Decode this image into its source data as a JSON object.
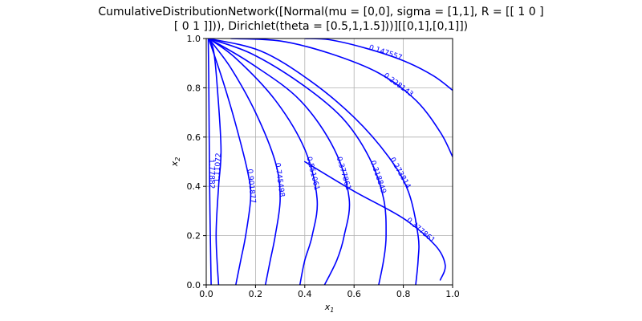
{
  "chart_data": {
    "type": "contour",
    "title_lines": [
      "CumulativeDistributionNetwork([Normal(mu = [0,0], sigma = [1,1], R = [[ 1 0 ]",
      "[ 0 1 ]])), Dirichlet(theta = [0.5,1,1.5]))][[0,1],[0,1]])"
    ],
    "xlabel": "x",
    "xlabel_sub": "1",
    "ylabel": "x",
    "ylabel_sub": "2",
    "xlim": [
      0,
      1
    ],
    "ylim": [
      0,
      1
    ],
    "xticks": [
      "0.0",
      "0.2",
      "0.4",
      "0.6",
      "0.8",
      "1.0"
    ],
    "yticks": [
      "0.0",
      "0.2",
      "0.4",
      "0.6",
      "0.8",
      "1.0"
    ],
    "grid": true,
    "line_color": "#0000ff",
    "contours": [
      {
        "level": "1.77882",
        "points": [
          [
            0.02,
            0.0
          ],
          [
            0.015,
            0.3
          ],
          [
            0.012,
            0.6
          ],
          [
            0.01,
            0.85
          ],
          [
            0.008,
            1.0
          ]
        ]
      },
      {
        "level": "1.11072",
        "points": [
          [
            0.05,
            0.0
          ],
          [
            0.04,
            0.2
          ],
          [
            0.05,
            0.4
          ],
          [
            0.06,
            0.55
          ],
          [
            0.045,
            0.8
          ],
          [
            0.03,
            0.95
          ],
          [
            0.01,
            1.0
          ]
        ]
      },
      {
        "level": "0.901877",
        "points": [
          [
            0.12,
            0.0
          ],
          [
            0.14,
            0.1
          ],
          [
            0.16,
            0.2
          ],
          [
            0.18,
            0.35
          ],
          [
            0.17,
            0.45
          ],
          [
            0.12,
            0.65
          ],
          [
            0.07,
            0.82
          ],
          [
            0.01,
            1.0
          ]
        ]
      },
      {
        "level": "0.745498",
        "points": [
          [
            0.24,
            0.0
          ],
          [
            0.26,
            0.1
          ],
          [
            0.28,
            0.2
          ],
          [
            0.3,
            0.35
          ],
          [
            0.28,
            0.5
          ],
          [
            0.2,
            0.7
          ],
          [
            0.1,
            0.88
          ],
          [
            0.01,
            1.0
          ]
        ]
      },
      {
        "level": "0.551061",
        "points": [
          [
            0.38,
            0.0
          ],
          [
            0.4,
            0.1
          ],
          [
            0.43,
            0.2
          ],
          [
            0.45,
            0.35
          ],
          [
            0.4,
            0.55
          ],
          [
            0.28,
            0.75
          ],
          [
            0.12,
            0.92
          ],
          [
            0.01,
            1.0
          ]
        ]
      },
      {
        "level": "0.377861",
        "points": [
          [
            0.48,
            0.0
          ],
          [
            0.53,
            0.1
          ],
          [
            0.56,
            0.2
          ],
          [
            0.58,
            0.35
          ],
          [
            0.52,
            0.55
          ],
          [
            0.38,
            0.75
          ],
          [
            0.18,
            0.9
          ],
          [
            0.01,
            1.0
          ]
        ]
      },
      {
        "level": "0.318849",
        "points": [
          [
            0.7,
            0.0
          ],
          [
            0.72,
            0.1
          ],
          [
            0.73,
            0.2
          ],
          [
            0.72,
            0.35
          ],
          [
            0.66,
            0.52
          ],
          [
            0.55,
            0.68
          ],
          [
            0.38,
            0.82
          ],
          [
            0.18,
            0.94
          ],
          [
            0.01,
            1.0
          ]
        ]
      },
      {
        "level": "0.273814",
        "points": [
          [
            0.85,
            0.0
          ],
          [
            0.86,
            0.1
          ],
          [
            0.86,
            0.2
          ],
          [
            0.82,
            0.38
          ],
          [
            0.74,
            0.52
          ],
          [
            0.6,
            0.68
          ],
          [
            0.42,
            0.83
          ],
          [
            0.22,
            0.95
          ],
          [
            0.01,
            1.0
          ]
        ]
      },
      {
        "level": "0.228143",
        "points": [
          [
            1.0,
            0.52
          ],
          [
            0.95,
            0.62
          ],
          [
            0.85,
            0.75
          ],
          [
            0.7,
            0.86
          ],
          [
            0.5,
            0.94
          ],
          [
            0.3,
            0.99
          ],
          [
            0.1,
            1.0
          ]
        ]
      },
      {
        "level": "0.147557",
        "points": [
          [
            1.0,
            0.79
          ],
          [
            0.92,
            0.85
          ],
          [
            0.8,
            0.91
          ],
          [
            0.65,
            0.96
          ],
          [
            0.5,
            0.995
          ],
          [
            0.4,
            1.0
          ]
        ]
      },
      {
        "level": "0.377861",
        "points": [
          [
            0.95,
            0.02
          ],
          [
            0.97,
            0.08
          ],
          [
            0.93,
            0.16
          ],
          [
            0.8,
            0.27
          ],
          [
            0.6,
            0.38
          ],
          [
            0.4,
            0.5
          ]
        ]
      }
    ]
  }
}
